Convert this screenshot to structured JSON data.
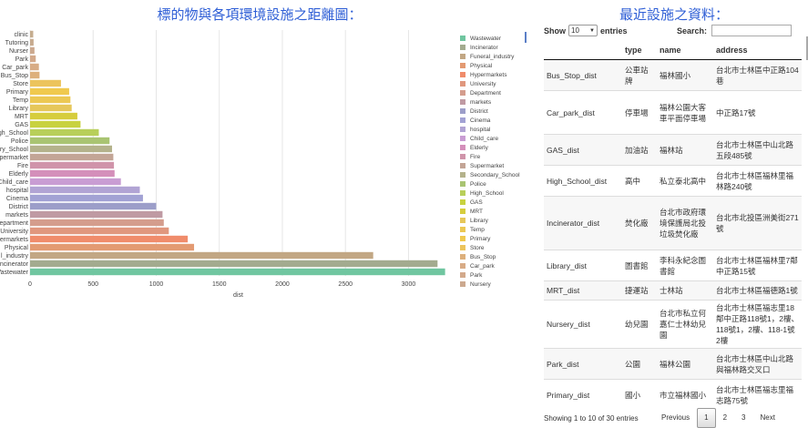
{
  "left_title": "標的物與各項環境設施之距離圖：",
  "right_title": "最近設施之資料：",
  "chart_data": {
    "type": "bar",
    "orientation": "horizontal",
    "xlabel": "dist",
    "xlim": [
      0,
      3300
    ],
    "xticks": [
      0,
      500,
      1000,
      1500,
      2000,
      2500,
      3000
    ],
    "categories": [
      "clinic",
      "Tutoring",
      "Nursery",
      "Park",
      "Car_park",
      "Bus_Stop",
      "Store",
      "Primary",
      "Temp",
      "Library",
      "MRT",
      "GAS",
      "High_School",
      "Police",
      "Secondary_School",
      "Supermarket",
      "Fire",
      "Elderly",
      "Child_care",
      "hospital",
      "Cinema",
      "District",
      "markets",
      "Department",
      "University",
      "Hypermarkets",
      "Physical",
      "Funeral_industry",
      "Incinerator",
      "Wastewater"
    ],
    "tick_labels": [
      "clinic",
      "Tutoring",
      "Nurser",
      "Park",
      "Car_park",
      "Bus_Stop",
      "Store",
      "Primary",
      "Temp",
      "Library",
      "MRT",
      "GAS",
      "gh_School",
      "Police",
      "ry_School",
      "upermarket",
      "Fire",
      "Elderly",
      "Child_care",
      "hospital",
      "Cinema",
      "District",
      "markets",
      "epartment",
      "University",
      "ermarkets",
      "Physical",
      "l_industry",
      "ncinerator",
      "Vastewater"
    ],
    "values": [
      25,
      28,
      35,
      45,
      70,
      75,
      245,
      310,
      320,
      330,
      375,
      400,
      545,
      630,
      650,
      660,
      665,
      670,
      720,
      870,
      895,
      1000,
      1050,
      1060,
      1100,
      1250,
      1300,
      2720,
      3230,
      3290
    ],
    "colors": [
      "#c5ad8f",
      "#c7ab8f",
      "#cca98f",
      "#d3a98b",
      "#d8ac86",
      "#ddb07c",
      "#ecc45c",
      "#f0c94e",
      "#ecc853",
      "#e6c75a",
      "#d6cd3d",
      "#c8d23f",
      "#b8cf5a",
      "#a9c472",
      "#b4b28b",
      "#c3a596",
      "#d094aa",
      "#d48fba",
      "#c99dd3",
      "#b1a4d4",
      "#a2a2d4",
      "#9c9ec9",
      "#bf9aa3",
      "#d49d8d",
      "#e0977e",
      "#f08c6b",
      "#e39a72",
      "#c2a784",
      "#a3ab8f",
      "#70c6a0"
    ]
  },
  "legend": [
    {
      "label": "Wastewater",
      "color": "#70c6a0"
    },
    {
      "label": "Incinerator",
      "color": "#a3ab8f"
    },
    {
      "label": "Funeral_industry",
      "color": "#c2a784"
    },
    {
      "label": "Physical",
      "color": "#e39a72"
    },
    {
      "label": "Hypermarkets",
      "color": "#f08c6b"
    },
    {
      "label": "University",
      "color": "#e0977e"
    },
    {
      "label": "Department",
      "color": "#d49d8d"
    },
    {
      "label": "markets",
      "color": "#bf9aa3"
    },
    {
      "label": "District",
      "color": "#9c9ec9"
    },
    {
      "label": "Cinema",
      "color": "#a2a2d4"
    },
    {
      "label": "hospital",
      "color": "#b1a4d4"
    },
    {
      "label": "Child_care",
      "color": "#c99dd3"
    },
    {
      "label": "Elderly",
      "color": "#d48fba"
    },
    {
      "label": "Fire",
      "color": "#d094aa"
    },
    {
      "label": "Supermarket",
      "color": "#c3a596"
    },
    {
      "label": "Secondary_School",
      "color": "#b4b28b"
    },
    {
      "label": "Police",
      "color": "#a9c472"
    },
    {
      "label": "High_School",
      "color": "#b8cf5a"
    },
    {
      "label": "GAS",
      "color": "#c8d23f"
    },
    {
      "label": "MRT",
      "color": "#d6cd3d"
    },
    {
      "label": "Library",
      "color": "#e6c75a"
    },
    {
      "label": "Temp",
      "color": "#ecc853"
    },
    {
      "label": "Primary",
      "color": "#f0c94e"
    },
    {
      "label": "Store",
      "color": "#ecc45c"
    },
    {
      "label": "Bus_Stop",
      "color": "#ddb07c"
    },
    {
      "label": "Car_park",
      "color": "#d8ac86"
    },
    {
      "label": "Park",
      "color": "#d3a98b"
    },
    {
      "label": "Nursery",
      "color": "#cca98f"
    }
  ],
  "controls": {
    "show_label": "Show",
    "entries_value": "10",
    "entries_label": "entries",
    "search_label": "Search:"
  },
  "table": {
    "headers": [
      "",
      "type",
      "name",
      "address"
    ],
    "rows": [
      {
        "idx": "Bus_Stop_dist",
        "type": "公車站牌",
        "name": "福林國小",
        "address": "台北市士林區中正路104巷"
      },
      {
        "idx": "Car_park_dist",
        "type": "停車場",
        "name": "福林公園大客車平面停車場",
        "address": "中正路17號"
      },
      {
        "idx": "GAS_dist",
        "type": "加油站",
        "name": "福林站",
        "address": "台北市士林區中山北路五段485號"
      },
      {
        "idx": "High_School_dist",
        "type": "高中",
        "name": "私立泰北高中",
        "address": "台北市士林區福林里福林路240號"
      },
      {
        "idx": "Incinerator_dist",
        "type": "焚化廠",
        "name": "台北市政府環境保護局北投垃圾焚化廠",
        "address": "台北市北投區洲美街271號"
      },
      {
        "idx": "Library_dist",
        "type": "圖書館",
        "name": "李科永紀念圖書館",
        "address": "台北市士林區福林里7鄰中正路15號"
      },
      {
        "idx": "MRT_dist",
        "type": "捷運站",
        "name": "士林站",
        "address": "台北市士林區福德路1號"
      },
      {
        "idx": "Nursery_dist",
        "type": "幼兒園",
        "name": "台北市私立何嘉仁士林幼兒園",
        "address": "台北市士林區福志里18鄰中正路118號1，2樓、118號1，2樓、118-1號2樓"
      },
      {
        "idx": "Park_dist",
        "type": "公園",
        "name": "福林公園",
        "address": "台北市士林區中山北路與福林路交叉口"
      },
      {
        "idx": "Primary_dist",
        "type": "國小",
        "name": "市立福林國小",
        "address": "台北市士林區福志里福志路75號"
      }
    ]
  },
  "footer": {
    "info": "Showing 1 to 10 of 30 entries",
    "previous": "Previous",
    "pages": [
      "1",
      "2",
      "3"
    ],
    "next": "Next"
  }
}
